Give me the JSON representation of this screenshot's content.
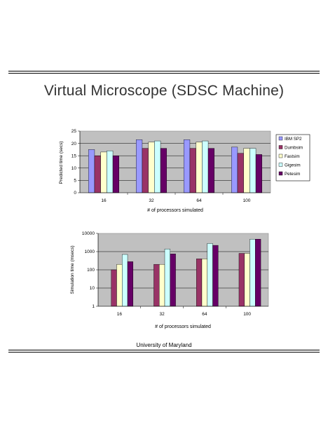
{
  "page": {
    "title": "Virtual Microscope (SDSC Machine)",
    "footer": "University of Maryland"
  },
  "colors": {
    "plot_background": "#c0c0c0",
    "series": [
      "#9999ff",
      "#993366",
      "#ffffcc",
      "#ccffff",
      "#660066"
    ]
  },
  "chart_data": [
    {
      "type": "bar",
      "categories": [
        "16",
        "32",
        "64",
        "100"
      ],
      "series": [
        {
          "name": "IBM SP2",
          "values": [
            17.5,
            21.5,
            21.5,
            18.5
          ]
        },
        {
          "name": "Dumbsim",
          "values": [
            15,
            18,
            18,
            16
          ]
        },
        {
          "name": "Fastsim",
          "values": [
            16.5,
            20.5,
            20.5,
            18
          ]
        },
        {
          "name": "Gigesim",
          "values": [
            17,
            21,
            21,
            18
          ]
        },
        {
          "name": "Petesim",
          "values": [
            15,
            18,
            18,
            15.5
          ]
        }
      ],
      "xlabel": "# of processors simulated",
      "ylabel": "Predicted time (secs)",
      "ylim": [
        0,
        25
      ],
      "yticks": [
        "0",
        "5",
        "10",
        "15",
        "20",
        "25"
      ],
      "grid": true,
      "legend": "right"
    },
    {
      "type": "bar",
      "categories": [
        "16",
        "32",
        "64",
        "100"
      ],
      "series": [
        {
          "name": "IBM SP2",
          "values": [
            null,
            null,
            null,
            null
          ]
        },
        {
          "name": "Dumbsim",
          "values": [
            100,
            200,
            400,
            800
          ]
        },
        {
          "name": "Fastsim",
          "values": [
            200,
            200,
            400,
            800
          ]
        },
        {
          "name": "Gigesim",
          "values": [
            700,
            1400,
            2800,
            4800
          ]
        },
        {
          "name": "Petesim",
          "values": [
            280,
            750,
            2200,
            4800
          ]
        }
      ],
      "xlabel": "# of processors simulated",
      "ylabel": "Simulation time (msecs)",
      "ylim": [
        1,
        10000
      ],
      "yscale": "log",
      "yticks": [
        "1",
        "10",
        "100",
        "1000",
        "10000"
      ],
      "grid": true,
      "legend": "none"
    }
  ]
}
